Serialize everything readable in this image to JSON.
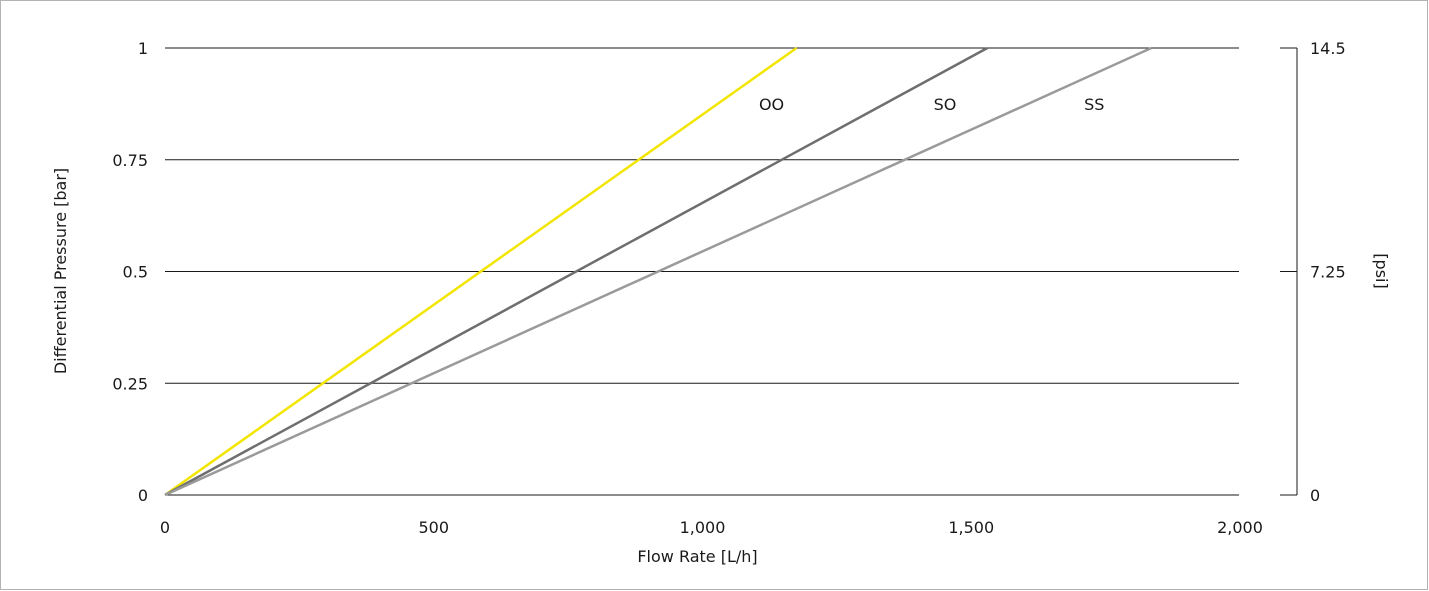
{
  "chart_data": {
    "type": "line",
    "title": "",
    "xlabel": "Flow Rate [L/h]",
    "ylabel": "Differential Pressure [bar]",
    "y2label": "[psi]",
    "xlim": [
      0,
      2000
    ],
    "ylim": [
      0,
      1
    ],
    "xticks": [
      "0",
      "500",
      "1,000",
      "1,500",
      "2,000"
    ],
    "xtick_values": [
      0,
      500,
      1000,
      1500,
      2000
    ],
    "yticks": [
      "0",
      "0.25",
      "0.5",
      "0.75",
      "1"
    ],
    "ytick_values": [
      0,
      0.25,
      0.5,
      0.75,
      1
    ],
    "y2ticks": [
      "0",
      "7.25",
      "14.5"
    ],
    "y2tick_values": [
      0,
      7.25,
      14.5
    ],
    "y2lim": [
      0,
      14.5
    ],
    "grid": "horizontal",
    "series": [
      {
        "name": "OO",
        "color": "#f2e500",
        "x": [
          0,
          1175
        ],
        "y": [
          0,
          1
        ],
        "label_at": [
          1105,
          0.875
        ]
      },
      {
        "name": "SO",
        "color": "#6e6e6e",
        "x": [
          0,
          1530
        ],
        "y": [
          0,
          1
        ],
        "label_at": [
          1430,
          0.875
        ]
      },
      {
        "name": "SS",
        "color": "#9a9a9a",
        "x": [
          0,
          1835
        ],
        "y": [
          0,
          1
        ],
        "label_at": [
          1710,
          0.875
        ]
      }
    ]
  }
}
